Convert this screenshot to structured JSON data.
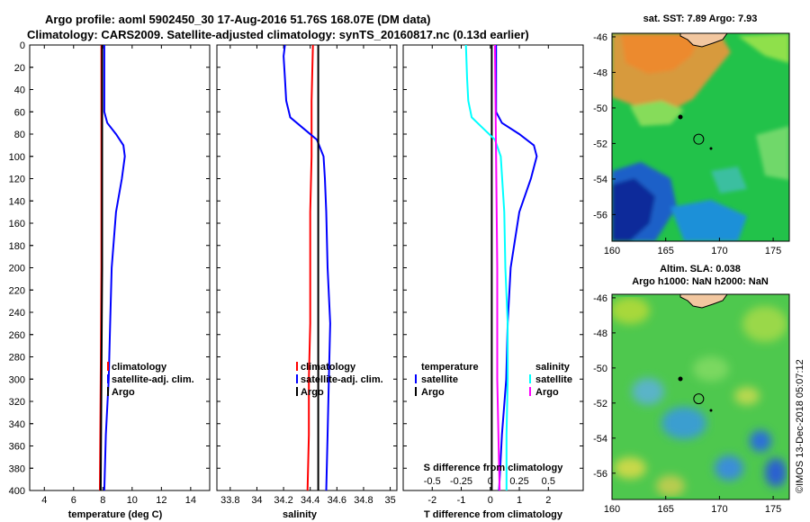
{
  "header": {
    "line1": "Argo profile: aoml 5902450_30 17-Aug-2016 51.76S 168.07E (DM data)",
    "line2": "Climatology: CARS2009. Satellite-adjusted climatology: synTS_20160817.nc (0.13d earlier)"
  },
  "colors": {
    "climatology": "#ff0000",
    "satellite": "#0000ff",
    "argo": "#000000",
    "sat_salinity": "#00ffff",
    "argo_salinity": "#ff00ff"
  },
  "chart_data": [
    {
      "type": "line",
      "id": "temperature",
      "xlabel": "temperature (deg C)",
      "ylabel": "",
      "xlim": [
        3,
        15.3
      ],
      "ylim": [
        400,
        0
      ],
      "xticks": [
        4,
        6,
        8,
        10,
        12,
        14
      ],
      "yticks": [
        0,
        20,
        40,
        60,
        80,
        100,
        120,
        140,
        160,
        180,
        200,
        220,
        240,
        260,
        280,
        300,
        320,
        340,
        360,
        380,
        400
      ],
      "legend": {
        "placement": "bottom-right",
        "entries": [
          "climatology",
          "satellite-adj. clim.",
          "Argo"
        ]
      },
      "series": [
        {
          "name": "climatology",
          "color": "#ff0000",
          "depth": [
            0,
            100,
            200,
            300,
            400
          ],
          "values": [
            7.9,
            7.9,
            7.9,
            7.85,
            7.8
          ]
        },
        {
          "name": "satellite-adj. clim.",
          "color": "#0000ff",
          "depth": [
            0,
            40,
            60,
            70,
            80,
            90,
            100,
            120,
            150,
            200,
            250,
            300,
            350,
            400
          ],
          "values": [
            8.1,
            8.1,
            8.1,
            8.3,
            8.9,
            9.4,
            9.5,
            9.3,
            8.9,
            8.6,
            8.5,
            8.4,
            8.2,
            8.1
          ]
        },
        {
          "name": "Argo",
          "color": "#000000",
          "depth": [
            0,
            100,
            200,
            300,
            400
          ],
          "values": [
            7.95,
            7.95,
            7.95,
            7.9,
            7.85
          ]
        }
      ]
    },
    {
      "type": "line",
      "id": "salinity",
      "xlabel": "salinity",
      "xlim": [
        33.7,
        35.05
      ],
      "ylim": [
        400,
        0
      ],
      "xticks": [
        33.8,
        34,
        34.2,
        34.4,
        34.6,
        34.8,
        35
      ],
      "legend": {
        "placement": "bottom-right",
        "entries": [
          "climatology",
          "satellite-adj. clim.",
          "Argo"
        ]
      },
      "series": [
        {
          "name": "climatology",
          "color": "#ff0000",
          "depth": [
            0,
            50,
            100,
            150,
            200,
            250,
            300,
            350,
            400
          ],
          "values": [
            34.42,
            34.41,
            34.41,
            34.4,
            34.4,
            34.4,
            34.39,
            34.39,
            34.38
          ]
        },
        {
          "name": "satellite-adj. clim.",
          "color": "#0000ff",
          "depth": [
            0,
            10,
            30,
            50,
            65,
            75,
            85,
            100,
            120,
            150,
            200,
            250,
            300,
            350,
            400
          ],
          "values": [
            34.21,
            34.2,
            34.21,
            34.22,
            34.25,
            34.35,
            34.45,
            34.5,
            34.51,
            34.52,
            34.53,
            34.55,
            34.54,
            34.53,
            34.52
          ]
        },
        {
          "name": "Argo",
          "color": "#000000",
          "depth": [
            0,
            100,
            200,
            300,
            400
          ],
          "values": [
            34.46,
            34.46,
            34.46,
            34.46,
            34.46
          ]
        }
      ]
    },
    {
      "type": "line",
      "id": "difference",
      "xlabel": "T difference from climatology",
      "xlim": [
        -3,
        3.2
      ],
      "ylim": [
        400,
        0
      ],
      "xticks": [
        -2,
        -1,
        0,
        1,
        2
      ],
      "top_axis": {
        "label": "S difference from climatology",
        "ticks": [
          "-0.5",
          "-0.25",
          "0",
          "0.25",
          "0.5"
        ],
        "values": [
          -0.5,
          -0.25,
          0,
          0.25,
          0.5
        ]
      },
      "legend_temperature": {
        "placement": "bottom-left",
        "title": "temperature",
        "entries": [
          "satellite",
          "Argo"
        ]
      },
      "legend_salinity": {
        "placement": "bottom-right",
        "title": "salinity",
        "entries": [
          "satellite",
          "Argo"
        ]
      },
      "series": [
        {
          "name": "temperature satellite",
          "color": "#0000ff",
          "depth": [
            0,
            40,
            60,
            70,
            80,
            90,
            100,
            120,
            150,
            200,
            250,
            300,
            350,
            400
          ],
          "values": [
            0.2,
            0.2,
            0.2,
            0.4,
            1.0,
            1.5,
            1.6,
            1.4,
            1.0,
            0.7,
            0.6,
            0.55,
            0.4,
            0.3
          ]
        },
        {
          "name": "temperature Argo",
          "color": "#000000",
          "depth": [
            0,
            100,
            200,
            300,
            400
          ],
          "values": [
            0.05,
            0.05,
            0.05,
            0.05,
            0.05
          ]
        },
        {
          "name": "salinity satellite",
          "color": "#00ffff",
          "depth": [
            0,
            30,
            50,
            65,
            75,
            85,
            100,
            150,
            200,
            250,
            300,
            350,
            400
          ],
          "values": [
            -0.21,
            -0.2,
            -0.19,
            -0.16,
            -0.06,
            0.04,
            0.09,
            0.12,
            0.13,
            0.15,
            0.15,
            0.14,
            0.14
          ]
        },
        {
          "name": "salinity Argo",
          "color": "#ff00ff",
          "depth": [
            0,
            100,
            200,
            300,
            400
          ],
          "values": [
            0.04,
            0.05,
            0.06,
            0.06,
            0.08
          ]
        }
      ]
    },
    {
      "type": "heatmap",
      "id": "sst_map",
      "title": "sat. SST: 7.89 Argo: 7.93",
      "xlim": [
        160,
        176.5
      ],
      "ylim": [
        -57.5,
        -45.8
      ],
      "xticks": [
        160,
        165,
        170,
        175
      ],
      "yticks": [
        -46,
        -48,
        -50,
        -52,
        -54,
        -56
      ],
      "argo_position": {
        "lon": 168.07,
        "lat": -51.76
      }
    },
    {
      "type": "heatmap",
      "id": "sla_map",
      "title": "Altim. SLA: 0.038",
      "subtitle": "Argo h1000: NaN h2000: NaN",
      "xlim": [
        160,
        176.5
      ],
      "ylim": [
        -57.5,
        -45.8
      ],
      "xticks": [
        160,
        165,
        170,
        175
      ],
      "yticks": [
        -46,
        -48,
        -50,
        -52,
        -54,
        -56
      ],
      "argo_position": {
        "lon": 168.07,
        "lat": -51.76
      }
    }
  ],
  "watermark": "©IMOS 13-Dec-2018 05:07:12"
}
